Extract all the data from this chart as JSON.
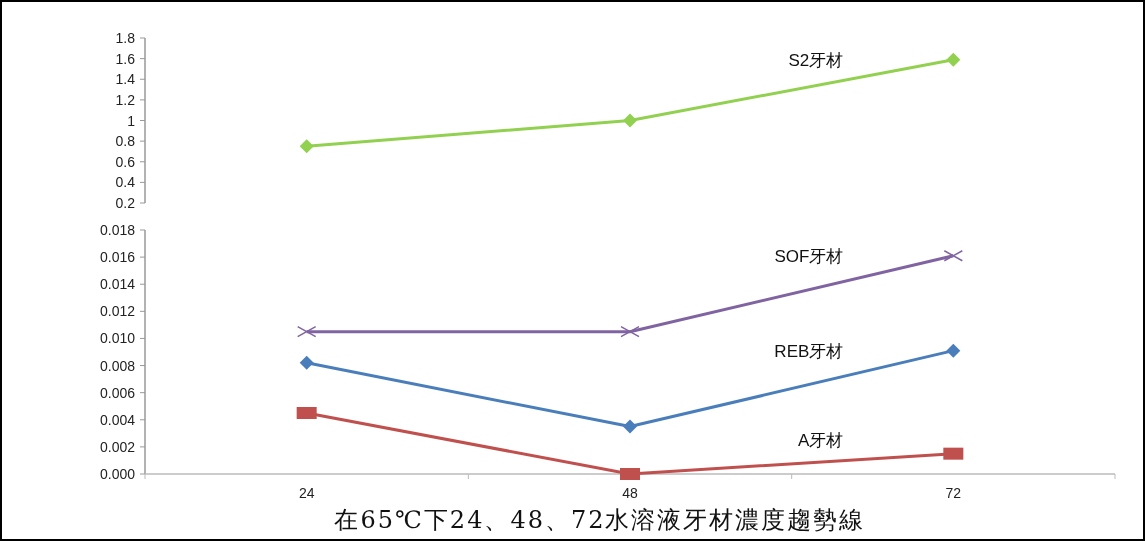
{
  "chart_data": [
    {
      "type": "line",
      "categories": [
        "24",
        "48",
        "72"
      ],
      "tick_labels": "y",
      "ylim": [
        0.2,
        1.8
      ],
      "yticks": [
        0.2,
        0.4,
        0.6,
        0.8,
        1,
        1.2,
        1.4,
        1.6,
        1.8
      ],
      "series": [
        {
          "name": "S2牙材",
          "color": "#92d050",
          "marker": "diamond",
          "values": [
            0.75,
            1.0,
            1.59
          ]
        }
      ]
    },
    {
      "type": "line",
      "title": "在65℃下24、48、72水溶液牙材濃度趨勢線",
      "categories": [
        "24",
        "48",
        "72"
      ],
      "ylim": [
        0,
        0.018
      ],
      "yticks": [
        {
          "value": 0,
          "label": "0.000"
        },
        {
          "value": 0.002,
          "label": "0.002"
        },
        {
          "value": 0.004,
          "label": "0.004"
        },
        {
          "value": 0.006,
          "label": "0.006"
        },
        {
          "value": 0.008,
          "label": "0.008"
        },
        {
          "value": 0.01,
          "label": "0.010"
        },
        {
          "value": 0.012,
          "label": "0.012"
        },
        {
          "value": 0.014,
          "label": "0.014"
        },
        {
          "value": 0.016,
          "label": "0.016"
        },
        {
          "value": 0.018,
          "label": "0.018"
        }
      ],
      "series": [
        {
          "name": "SOF牙材",
          "color": "#8064a2",
          "marker": "cross",
          "values": [
            0.0105,
            0.0105,
            0.0161
          ]
        },
        {
          "name": "REB牙材",
          "color": "#4a7ebb",
          "marker": "diamond",
          "values": [
            0.0082,
            0.0035,
            0.0091
          ]
        },
        {
          "name": "A牙材",
          "color": "#c0504d",
          "marker": "square",
          "values": [
            0.0045,
            0,
            0.0015
          ]
        }
      ]
    }
  ]
}
